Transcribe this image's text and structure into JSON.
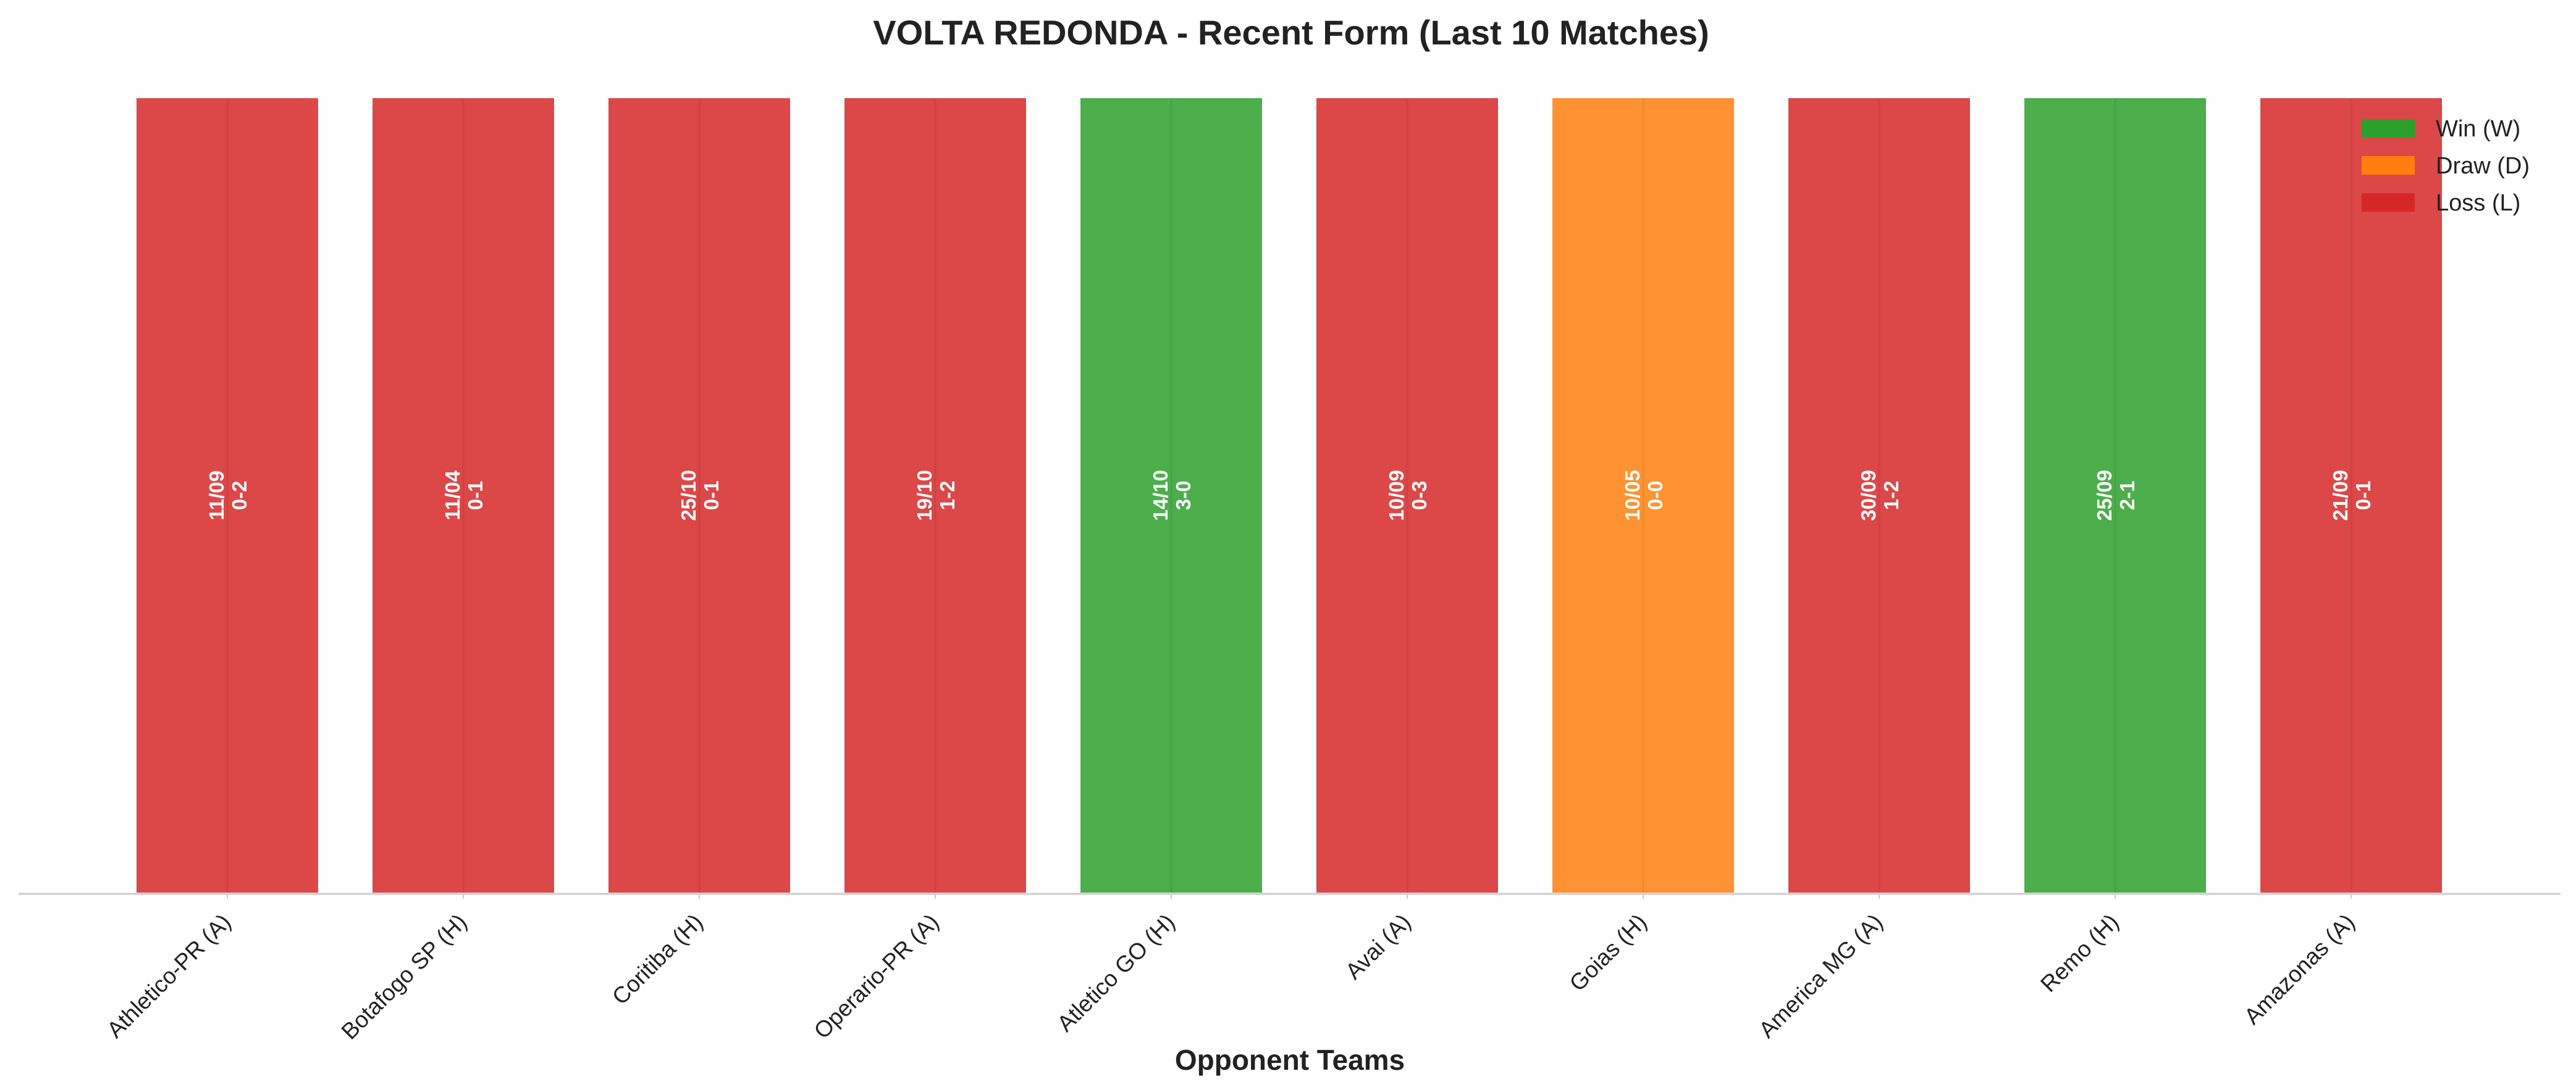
{
  "chart_data": {
    "type": "bar",
    "title": "VOLTA REDONDA - Recent Form (Last 10 Matches)",
    "xlabel": "Opponent Teams",
    "ylabel": "",
    "categories": [
      "Athletico-PR (A)",
      "Botafogo SP (H)",
      "Coritiba (H)",
      "Operario-PR (A)",
      "Atletico GO (H)",
      "Avai (A)",
      "Goias (H)",
      "America MG (A)",
      "Remo (H)",
      "Amazonas (A)"
    ],
    "values": [
      1,
      1,
      1,
      1,
      1,
      1,
      1,
      1,
      1,
      1
    ],
    "ylim": [
      0,
      1
    ],
    "results": [
      "L",
      "L",
      "L",
      "L",
      "W",
      "L",
      "D",
      "L",
      "W",
      "L"
    ],
    "dates": [
      "11/09",
      "11/04",
      "25/10",
      "19/10",
      "14/10",
      "10/09",
      "10/05",
      "30/09",
      "25/09",
      "21/09"
    ],
    "scores": [
      "0-2",
      "0-1",
      "0-1",
      "1-2",
      "3-0",
      "0-3",
      "0-0",
      "1-2",
      "2-1",
      "0-1"
    ],
    "legend": {
      "position": "top-right",
      "entries": [
        {
          "key": "W",
          "label": "Win (W)",
          "color": "#2ca02c"
        },
        {
          "key": "D",
          "label": "Draw (D)",
          "color": "#ff7f0e"
        },
        {
          "key": "L",
          "label": "Loss (L)",
          "color": "#d62728"
        }
      ]
    },
    "grid": false
  }
}
